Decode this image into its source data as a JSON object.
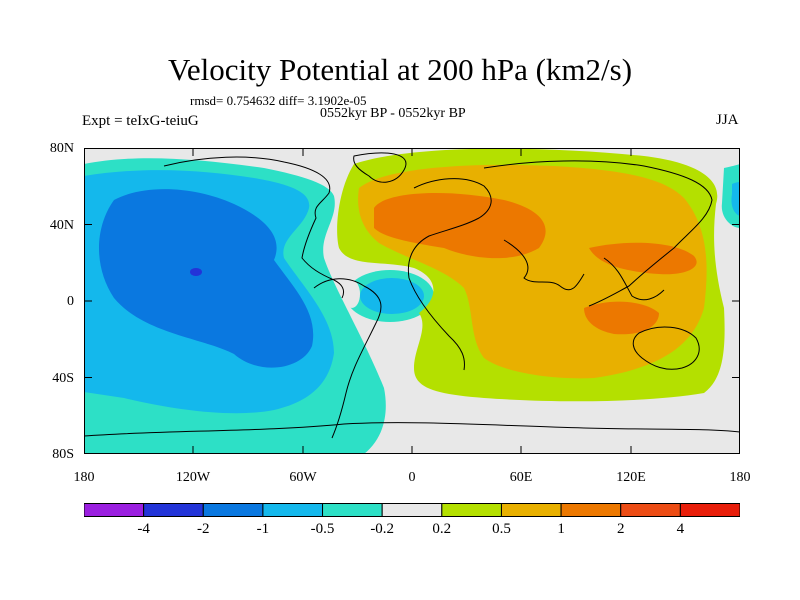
{
  "title": "Velocity Potential at 200 hPa (km2/s)",
  "stats": "rmsd= 0.754632 diff= 3.1902e-05",
  "period": "0552kyr BP - 0552kyr BP",
  "experiment": "Expt = teIxG-teiuG",
  "season": "JJA",
  "lat_labels": [
    "80N",
    "40N",
    "0",
    "40S",
    "80S"
  ],
  "lon_labels": [
    "180",
    "120W",
    "60W",
    "0",
    "60E",
    "120E",
    "180"
  ],
  "colorbar": {
    "colors": [
      "#9b1fe0",
      "#2334d8",
      "#0a78e0",
      "#14b8ec",
      "#2de0c6",
      "#e8e8e8",
      "#b4e000",
      "#e8b000",
      "#ec7800",
      "#ec4c14",
      "#e81e0a"
    ],
    "labels": [
      "-4",
      "-2",
      "-1",
      "-0.5",
      "-0.2",
      "0.2",
      "0.5",
      "1",
      "2",
      "4"
    ]
  },
  "palette": {
    "ocean_gray": "#e8e8e8",
    "cyan": "#2de0c6",
    "light_blue": "#14b8ec",
    "blue": "#0a78e0",
    "dark_blue": "#2334d8",
    "yellow_green": "#b4e000",
    "gold": "#e8b000",
    "orange": "#ec7800"
  }
}
